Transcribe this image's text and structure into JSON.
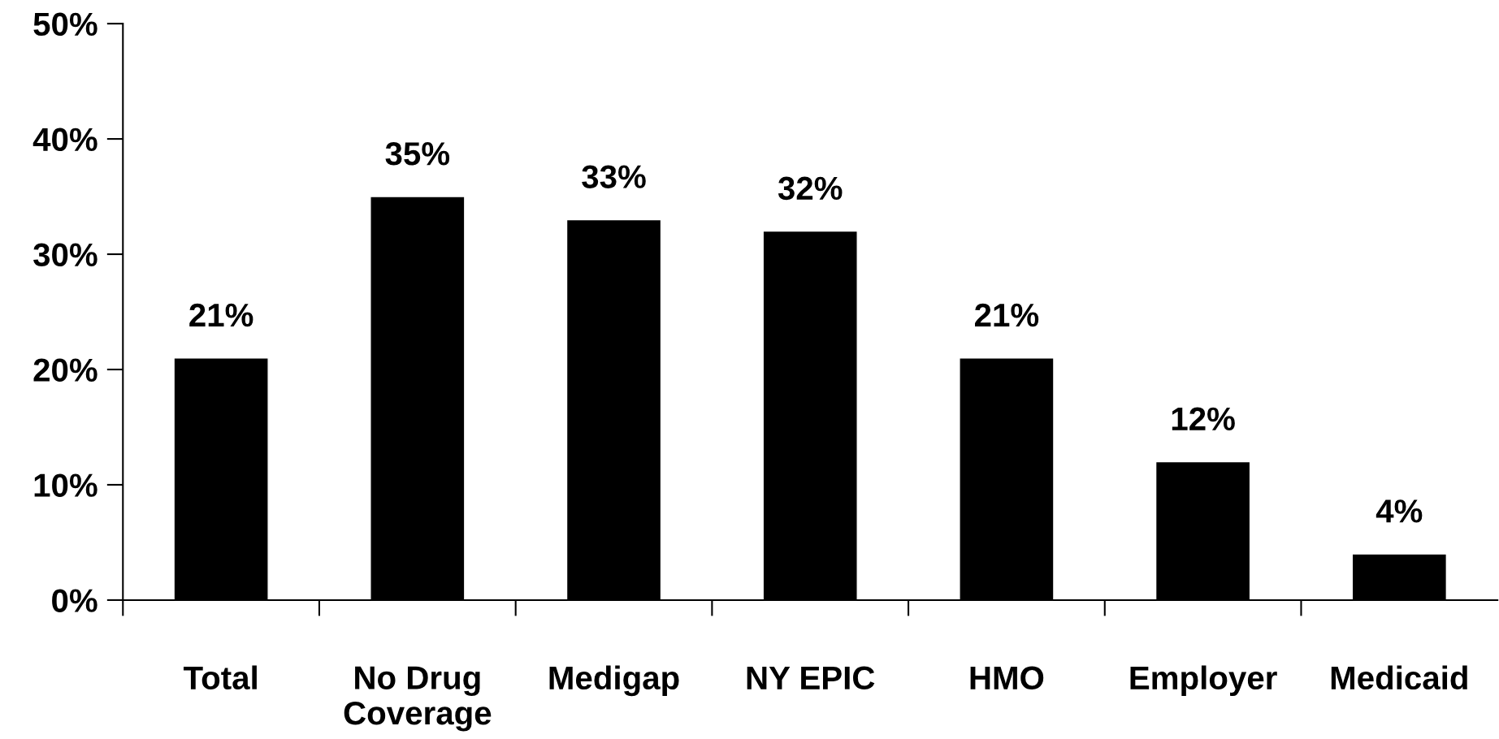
{
  "chart_data": {
    "type": "bar",
    "categories": [
      "Total",
      "No Drug\nCoverage",
      "Medigap",
      "NY EPIC",
      "HMO",
      "Employer",
      "Medicaid"
    ],
    "values": [
      21,
      35,
      33,
      32,
      21,
      12,
      4
    ],
    "color": "#000000",
    "value_labels": [
      "21%",
      "35%",
      "33%",
      "32%",
      "21%",
      "12%",
      "4%"
    ],
    "ylim": [
      0,
      50
    ],
    "yticks": [
      {
        "value": 0,
        "label": "0%"
      },
      {
        "value": 10,
        "label": "10%"
      },
      {
        "value": 20,
        "label": "20%"
      },
      {
        "value": 30,
        "label": "30%"
      },
      {
        "value": 40,
        "label": "40%"
      },
      {
        "value": 50,
        "label": "50%"
      }
    ]
  }
}
